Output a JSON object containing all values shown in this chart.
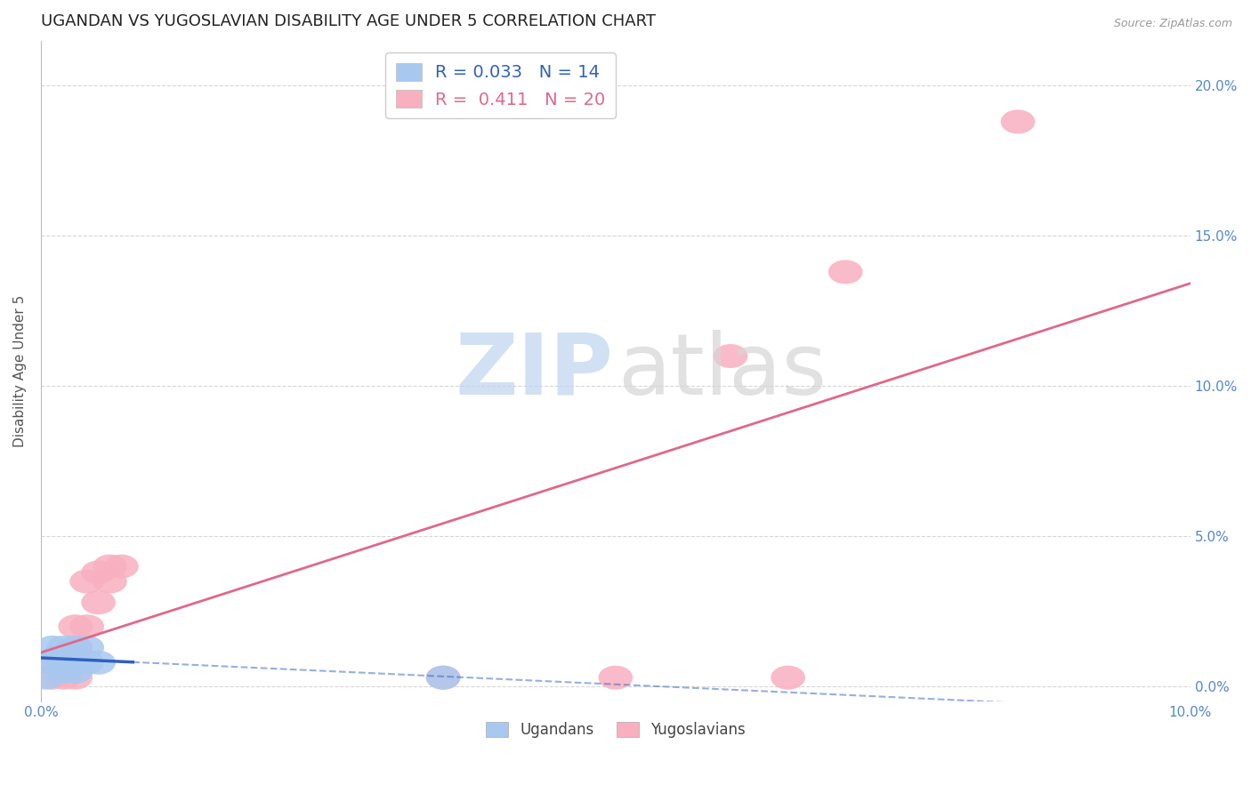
{
  "title": "UGANDAN VS YUGOSLAVIAN DISABILITY AGE UNDER 5 CORRELATION CHART",
  "source_text": "Source: ZipAtlas.com",
  "ylabel": "Disability Age Under 5",
  "xlim": [
    0.0,
    0.1
  ],
  "ylim": [
    -0.005,
    0.215
  ],
  "ytick_vals": [
    0.0,
    0.05,
    0.1,
    0.15,
    0.2
  ],
  "ugandan_x": [
    0.0005,
    0.001,
    0.001,
    0.0015,
    0.002,
    0.002,
    0.0025,
    0.003,
    0.003,
    0.003,
    0.004,
    0.004,
    0.005,
    0.035
  ],
  "ugandan_y": [
    0.003,
    0.008,
    0.013,
    0.01,
    0.005,
    0.013,
    0.01,
    0.005,
    0.01,
    0.013,
    0.008,
    0.013,
    0.008,
    0.003
  ],
  "yugoslavian_x": [
    0.001,
    0.001,
    0.002,
    0.002,
    0.003,
    0.003,
    0.003,
    0.004,
    0.004,
    0.005,
    0.005,
    0.006,
    0.006,
    0.007,
    0.035,
    0.05,
    0.06,
    0.065,
    0.07,
    0.085
  ],
  "yugoslavian_y": [
    0.003,
    0.008,
    0.003,
    0.008,
    0.003,
    0.013,
    0.02,
    0.02,
    0.035,
    0.028,
    0.038,
    0.04,
    0.035,
    0.04,
    0.003,
    0.003,
    0.11,
    0.003,
    0.138,
    0.188
  ],
  "ugandan_R": 0.033,
  "ugandan_N": 14,
  "yugoslavian_R": 0.411,
  "yugoslavian_N": 20,
  "ugandan_scatter_color": "#a8c8f0",
  "yugoslavian_scatter_color": "#f8b0c0",
  "ugandan_line_color": "#3060c0",
  "yugoslavian_line_color": "#e06888",
  "background_color": "#ffffff",
  "grid_color": "#cccccc",
  "tick_label_color": "#5588cc",
  "title_fontsize": 13,
  "ylabel_fontsize": 11,
  "source_fontsize": 9
}
